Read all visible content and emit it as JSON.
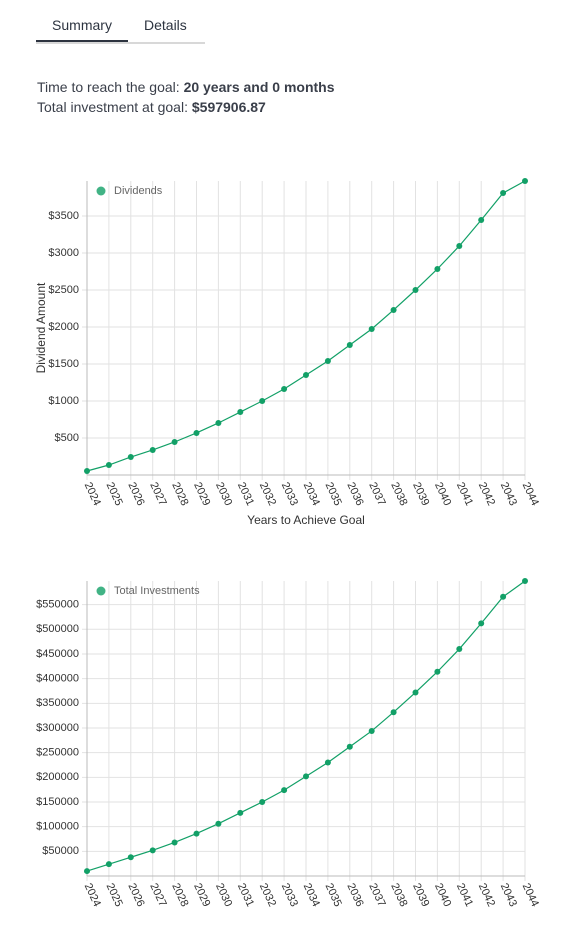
{
  "tabs": [
    "Summary",
    "Details"
  ],
  "summary": {
    "time_label": "Time to reach the goal:",
    "time_value": "20 years and 0 months",
    "investment_label": "Total investment at goal:",
    "investment_value": "$597906.87"
  },
  "chart_data": [
    {
      "type": "line",
      "ylabel": "Dividend Amount",
      "xlabel": "Years to Achieve Goal",
      "categories": [
        "2024",
        "2025",
        "2026",
        "2027",
        "2028",
        "2029",
        "2030",
        "2031",
        "2032",
        "2033",
        "2034",
        "2035",
        "2036",
        "2037",
        "2038",
        "2039",
        "2040",
        "2041",
        "2042",
        "2043",
        "2044"
      ],
      "series": [
        {
          "name": "Dividends",
          "color": "#12a067",
          "values": [
            54,
            135,
            243,
            338,
            446,
            568,
            703,
            851,
            1000,
            1162,
            1351,
            1541,
            1757,
            1973,
            2230,
            2500,
            2784,
            3095,
            3446,
            3811,
            3973
          ]
        }
      ],
      "ylim": [
        0,
        3973
      ],
      "yticks": [
        {
          "value": 500,
          "label": "$500"
        },
        {
          "value": 1000,
          "label": "$1000"
        },
        {
          "value": 1500,
          "label": "$1500"
        },
        {
          "value": 2000,
          "label": "$2000"
        },
        {
          "value": 2500,
          "label": "$2500"
        },
        {
          "value": 3000,
          "label": "$3000"
        },
        {
          "value": 3500,
          "label": "$3500"
        }
      ],
      "grid": true,
      "legend": "top-left"
    },
    {
      "type": "line",
      "categories": [
        "2024",
        "2025",
        "2026",
        "2027",
        "2028",
        "2029",
        "2030",
        "2031",
        "2032",
        "2033",
        "2034",
        "2035",
        "2036",
        "2037",
        "2038",
        "2039",
        "2040",
        "2041",
        "2042",
        "2043",
        "2044"
      ],
      "series": [
        {
          "name": "Total Investments",
          "color": "#12a067",
          "values": [
            10000,
            24000,
            38000,
            52000,
            68000,
            86000,
            106000,
            128000,
            150000,
            174000,
            202000,
            230000,
            262000,
            294000,
            332000,
            372000,
            414000,
            460000,
            512000,
            566000,
            597906.87
          ]
        }
      ],
      "ylim": [
        0,
        597906.87
      ],
      "yticks": [
        {
          "value": 50000,
          "label": "$50000"
        },
        {
          "value": 100000,
          "label": "$100000"
        },
        {
          "value": 150000,
          "label": "$150000"
        },
        {
          "value": 200000,
          "label": "$200000"
        },
        {
          "value": 250000,
          "label": "$250000"
        },
        {
          "value": 300000,
          "label": "$300000"
        },
        {
          "value": 350000,
          "label": "$350000"
        },
        {
          "value": 400000,
          "label": "$400000"
        },
        {
          "value": 450000,
          "label": "$450000"
        },
        {
          "value": 500000,
          "label": "$500000"
        },
        {
          "value": 550000,
          "label": "$550000"
        }
      ],
      "grid": true,
      "legend": "top-left"
    }
  ]
}
